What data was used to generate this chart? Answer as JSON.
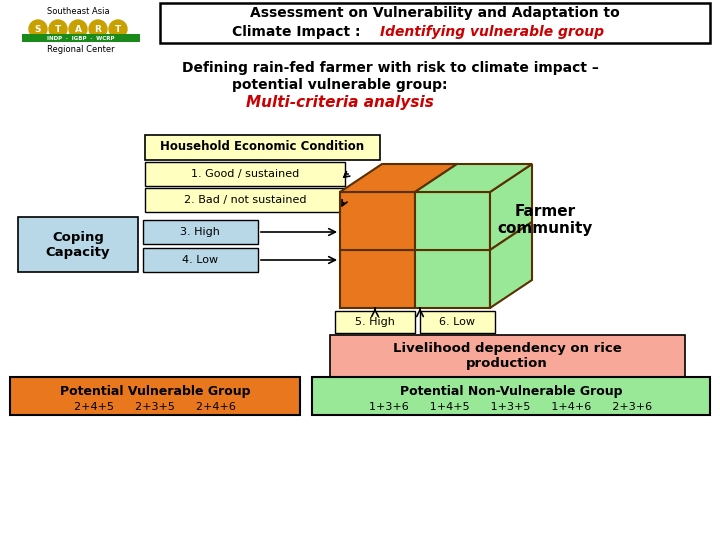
{
  "title_line1": "Assessment on Vulnerability and Adaptation to",
  "title_line2_normal": "Climate Impact : ",
  "title_line2_red": "Identifying vulnerable group",
  "subtitle_line1": "Defining rain-fed farmer with risk to climate impact –",
  "subtitle_line2": "potential vulnerable group:",
  "subtitle_red": "Multi-criteria analysis",
  "box_household": "Household Economic Condition",
  "box_good": "1. Good / sustained",
  "box_bad": "2. Bad / not sustained",
  "box_coping": "Coping\nCapacity",
  "box_high": "3. High",
  "box_low": "4. Low",
  "box_5high": "5. High",
  "box_6low": "6. Low",
  "box_farmer": "Farmer\ncommunity",
  "box_livelihood": "Livelihood dependency on rice\nproduction",
  "box_vulnerable_title": "Potential Vulnerable Group",
  "box_vulnerable_combos": "2+4+5      2+3+5      2+4+6",
  "box_nonvulnerable_title": "Potential Non-Vulnerable Group",
  "box_nonvulnerable_combos": "1+3+6      1+4+5      1+3+5      1+4+6      2+3+6",
  "color_orange": "#E8771E",
  "color_green_light": "#98E898",
  "color_yellow_light": "#FFFFC0",
  "color_blue_light": "#B8D8E8",
  "color_salmon": "#F8A898",
  "color_red_text": "#CC0000",
  "color_brown": "#5A3000",
  "bg_color": "#FFFFFF"
}
